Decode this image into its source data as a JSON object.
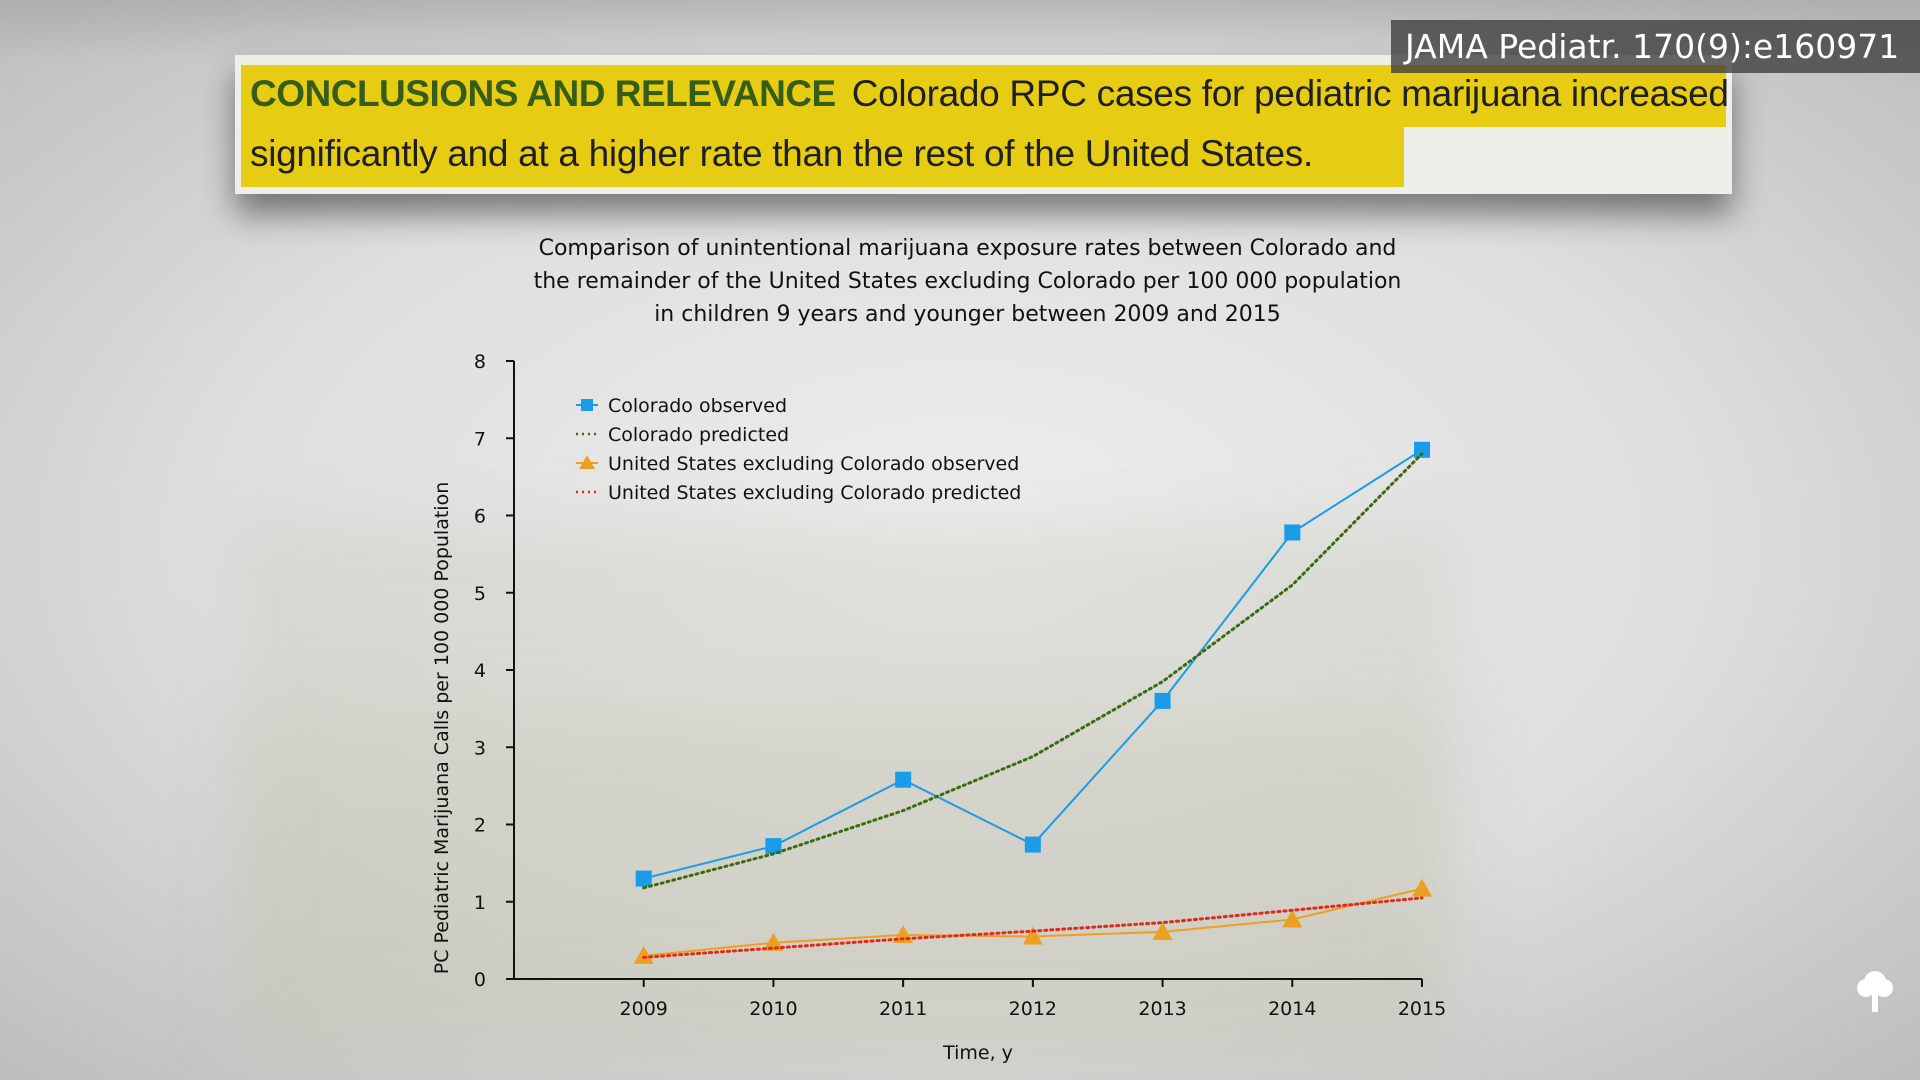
{
  "citation": "JAMA Pediatr. 170(9):e160971",
  "conclusion": {
    "heading": "CONCLUSIONS AND RELEVANCE",
    "line1": "Colorado RPC cases for pediatric marijuana increased",
    "line2": "significantly and at a higher rate than the rest of the United States."
  },
  "colors": {
    "highlight": "#e7cc14",
    "heading": "#355d17",
    "colorado_observed": "#1a9ce8",
    "colorado_predicted": "#3a6b10",
    "us_observed": "#eda020",
    "us_predicted": "#e02a1a"
  },
  "icons": {
    "corner_logo": "tree-icon"
  },
  "chart_data": {
    "type": "line",
    "title_lines": [
      "Comparison of unintentional marijuana exposure rates between Colorado and",
      "the remainder of the United States excluding Colorado per 100 000 population",
      "in children 9 years and younger between 2009 and 2015"
    ],
    "xlabel": "Time, y",
    "ylabel": "PC Pediatric Marijuana Calls per 100 000 Population",
    "x": [
      2009,
      2010,
      2011,
      2012,
      2013,
      2014,
      2015
    ],
    "x_tick_labels": [
      "2009",
      "2010",
      "2011",
      "2012",
      "2013",
      "2014",
      "2015"
    ],
    "xlim": [
      2008,
      2015
    ],
    "ylim": [
      0,
      8
    ],
    "y_ticks": [
      0,
      1,
      2,
      3,
      4,
      5,
      6,
      7,
      8
    ],
    "grid": false,
    "legend_position": "top-left",
    "series": [
      {
        "name": "Colorado observed",
        "marker": "square",
        "style": "solid",
        "color": "#1a9ce8",
        "values": [
          1.3,
          1.72,
          2.58,
          1.74,
          3.6,
          5.78,
          6.85
        ]
      },
      {
        "name": "Colorado predicted",
        "marker": "none",
        "style": "dotted",
        "color": "#3a6b10",
        "values": [
          1.18,
          1.62,
          2.18,
          2.88,
          3.85,
          5.1,
          6.8
        ]
      },
      {
        "name": "United States excluding Colorado observed",
        "marker": "triangle",
        "style": "solid",
        "color": "#eda020",
        "values": [
          0.3,
          0.47,
          0.57,
          0.55,
          0.61,
          0.77,
          1.17
        ]
      },
      {
        "name": "United States excluding Colorado predicted",
        "marker": "none",
        "style": "dotted",
        "color": "#e02a1a",
        "values": [
          0.28,
          0.4,
          0.52,
          0.62,
          0.73,
          0.89,
          1.05
        ]
      }
    ]
  }
}
